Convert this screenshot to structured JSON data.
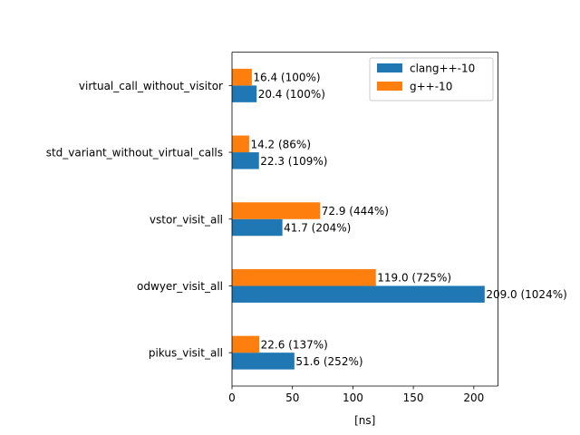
{
  "chart_data": {
    "type": "bar",
    "orientation": "horizontal",
    "xlabel": "[ns]",
    "ylabel": "",
    "xlim": [
      0,
      220
    ],
    "xticks": [
      0,
      50,
      100,
      150,
      200
    ],
    "grid": false,
    "legend_position": "top-right",
    "categories": [
      "virtual_call_without_visitor",
      "std_variant_without_virtual_calls",
      "vstor_visit_all",
      "odwyer_visit_all",
      "pikus_visit_all"
    ],
    "series": [
      {
        "name": "clang++-10",
        "color": "#1f77b4",
        "values": [
          20.4,
          22.3,
          41.7,
          209.0,
          51.6
        ],
        "labels": [
          "20.4 (100%)",
          "22.3 (109%)",
          "41.7 (204%)",
          "209.0 (1024%)",
          "51.6 (252%)"
        ]
      },
      {
        "name": "g++-10",
        "color": "#ff7f0e",
        "values": [
          16.4,
          14.2,
          72.9,
          119.0,
          22.6
        ],
        "labels": [
          "16.4 (100%)",
          "14.2 (86%)",
          "72.9 (444%)",
          "119.0 (725%)",
          "22.6 (137%)"
        ]
      }
    ]
  }
}
